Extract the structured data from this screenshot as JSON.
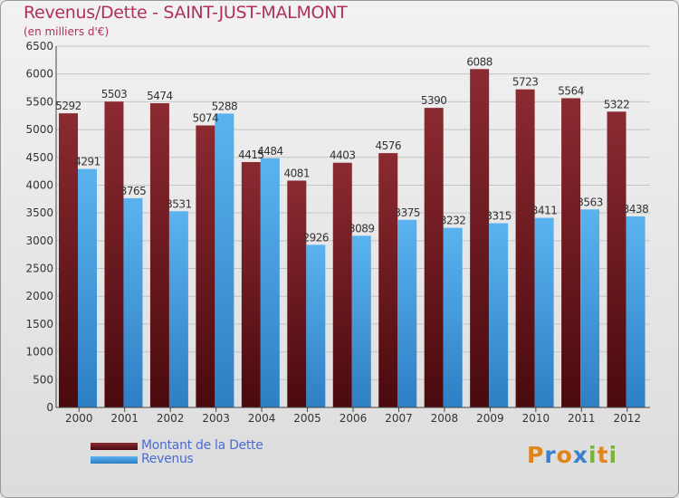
{
  "header": {
    "title": "Revenus/Dette - SAINT-JUST-MALMONT",
    "subtitle": "(en milliers d'€)"
  },
  "logo": {
    "letters": [
      "P",
      "r",
      "o",
      "x",
      "i",
      "t",
      "i"
    ],
    "colors": [
      "#e0841c",
      "#3b7fd0",
      "#e0841c",
      "#3b7fd0",
      "#7ab33a",
      "#e0841c",
      "#7ab33a"
    ]
  },
  "colors": {
    "dette": "#7a1f25",
    "revenus": "#4aa3e6",
    "title": "#b0305a",
    "legend_text": "#4a6cd0"
  },
  "chart_data": {
    "type": "bar",
    "title": "Revenus/Dette - SAINT-JUST-MALMONT",
    "ylabel": "",
    "xlabel": "",
    "ylim": [
      0,
      6500
    ],
    "yticks": [
      0,
      500,
      1000,
      1500,
      2000,
      2500,
      3000,
      3500,
      4000,
      4500,
      5000,
      5500,
      6000,
      6500
    ],
    "grid": true,
    "legend": "bottom-left",
    "categories": [
      "2000",
      "2001",
      "2002",
      "2003",
      "2004",
      "2005",
      "2006",
      "2007",
      "2008",
      "2009",
      "2010",
      "2011",
      "2012"
    ],
    "series": [
      {
        "name": "Montant de la Dette",
        "color": "#7a1f25",
        "values": [
          5292,
          5503,
          5474,
          5074,
          4415,
          4081,
          4403,
          4576,
          5390,
          6088,
          5723,
          5564,
          5322
        ]
      },
      {
        "name": "Revenus",
        "color": "#4aa3e6",
        "values": [
          4291,
          3765,
          3531,
          5288,
          4484,
          2926,
          3089,
          3375,
          3232,
          3315,
          3411,
          3563,
          3438
        ]
      }
    ]
  }
}
